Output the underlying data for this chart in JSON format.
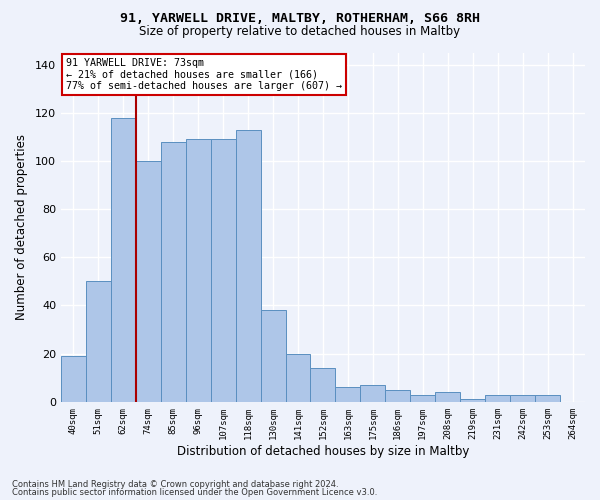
{
  "title_line1": "91, YARWELL DRIVE, MALTBY, ROTHERHAM, S66 8RH",
  "title_line2": "Size of property relative to detached houses in Maltby",
  "xlabel": "Distribution of detached houses by size in Maltby",
  "ylabel": "Number of detached properties",
  "categories": [
    "40sqm",
    "51sqm",
    "62sqm",
    "74sqm",
    "85sqm",
    "96sqm",
    "107sqm",
    "118sqm",
    "130sqm",
    "141sqm",
    "152sqm",
    "163sqm",
    "175sqm",
    "186sqm",
    "197sqm",
    "208sqm",
    "219sqm",
    "231sqm",
    "242sqm",
    "253sqm",
    "264sqm"
  ],
  "values": [
    19,
    50,
    118,
    100,
    108,
    109,
    109,
    113,
    38,
    20,
    14,
    6,
    7,
    5,
    3,
    4,
    1,
    3,
    3,
    3,
    0
  ],
  "bar_color": "#aec6e8",
  "bar_edge_color": "#5a8fc0",
  "background_color": "#eef2fb",
  "grid_color": "#ffffff",
  "vline_color": "#aa0000",
  "annotation_line1": "91 YARWELL DRIVE: 73sqm",
  "annotation_line2": "← 21% of detached houses are smaller (166)",
  "annotation_line3": "77% of semi-detached houses are larger (607) →",
  "annotation_box_color": "#ffffff",
  "annotation_box_edge": "#cc0000",
  "ylim": [
    0,
    145
  ],
  "yticks": [
    0,
    20,
    40,
    60,
    80,
    100,
    120,
    140
  ],
  "footnote1": "Contains HM Land Registry data © Crown copyright and database right 2024.",
  "footnote2": "Contains public sector information licensed under the Open Government Licence v3.0."
}
